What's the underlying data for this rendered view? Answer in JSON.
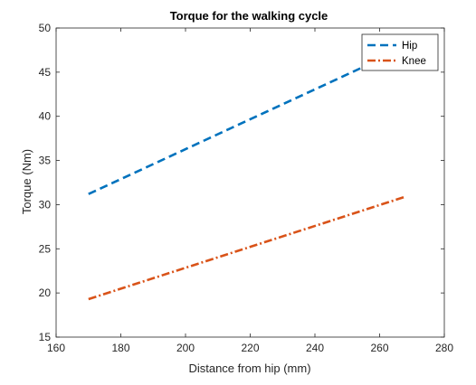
{
  "chart_data": {
    "type": "line",
    "title": "Torque for the walking cycle",
    "xlabel": "Distance from hip (mm)",
    "ylabel": "Torque (Nm)",
    "xlim": [
      160,
      280
    ],
    "ylim": [
      15,
      50
    ],
    "xticks": [
      160,
      180,
      200,
      220,
      240,
      260,
      280
    ],
    "yticks": [
      15,
      20,
      25,
      30,
      35,
      40,
      45,
      50
    ],
    "grid": false,
    "legend_position": "top-right",
    "series": [
      {
        "name": "Hip",
        "color": "#0072BD",
        "line_style": "dashed",
        "x": [
          170,
          268
        ],
        "y": [
          31.2,
          47.8
        ]
      },
      {
        "name": "Knee",
        "color": "#D95319",
        "line_style": "dash-dot",
        "x": [
          170,
          268
        ],
        "y": [
          19.3,
          30.9
        ]
      }
    ]
  }
}
